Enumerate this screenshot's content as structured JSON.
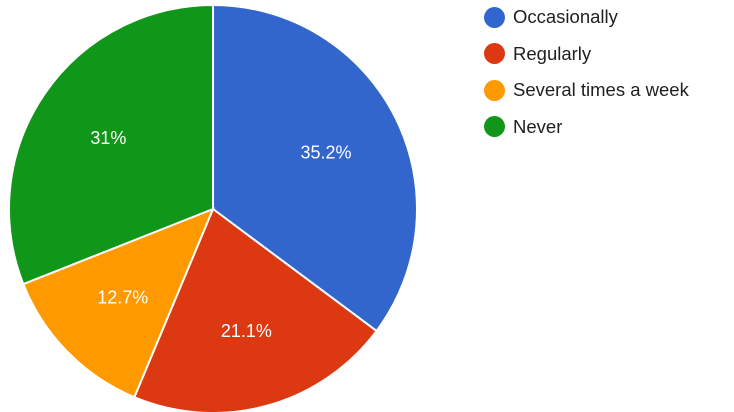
{
  "chart_data": {
    "type": "pie",
    "categories": [
      "Occasionally",
      "Regularly",
      "Several times a week",
      "Never"
    ],
    "values": [
      35.2,
      21.1,
      12.7,
      31
    ],
    "value_labels": [
      "35.2%",
      "21.1%",
      "12.7%",
      "31%"
    ],
    "colors": [
      "#3366cc",
      "#dc3912",
      "#ff9900",
      "#109618"
    ],
    "start_angle_deg": 90,
    "direction": "clockwise",
    "legend_position": "right",
    "title": ""
  }
}
